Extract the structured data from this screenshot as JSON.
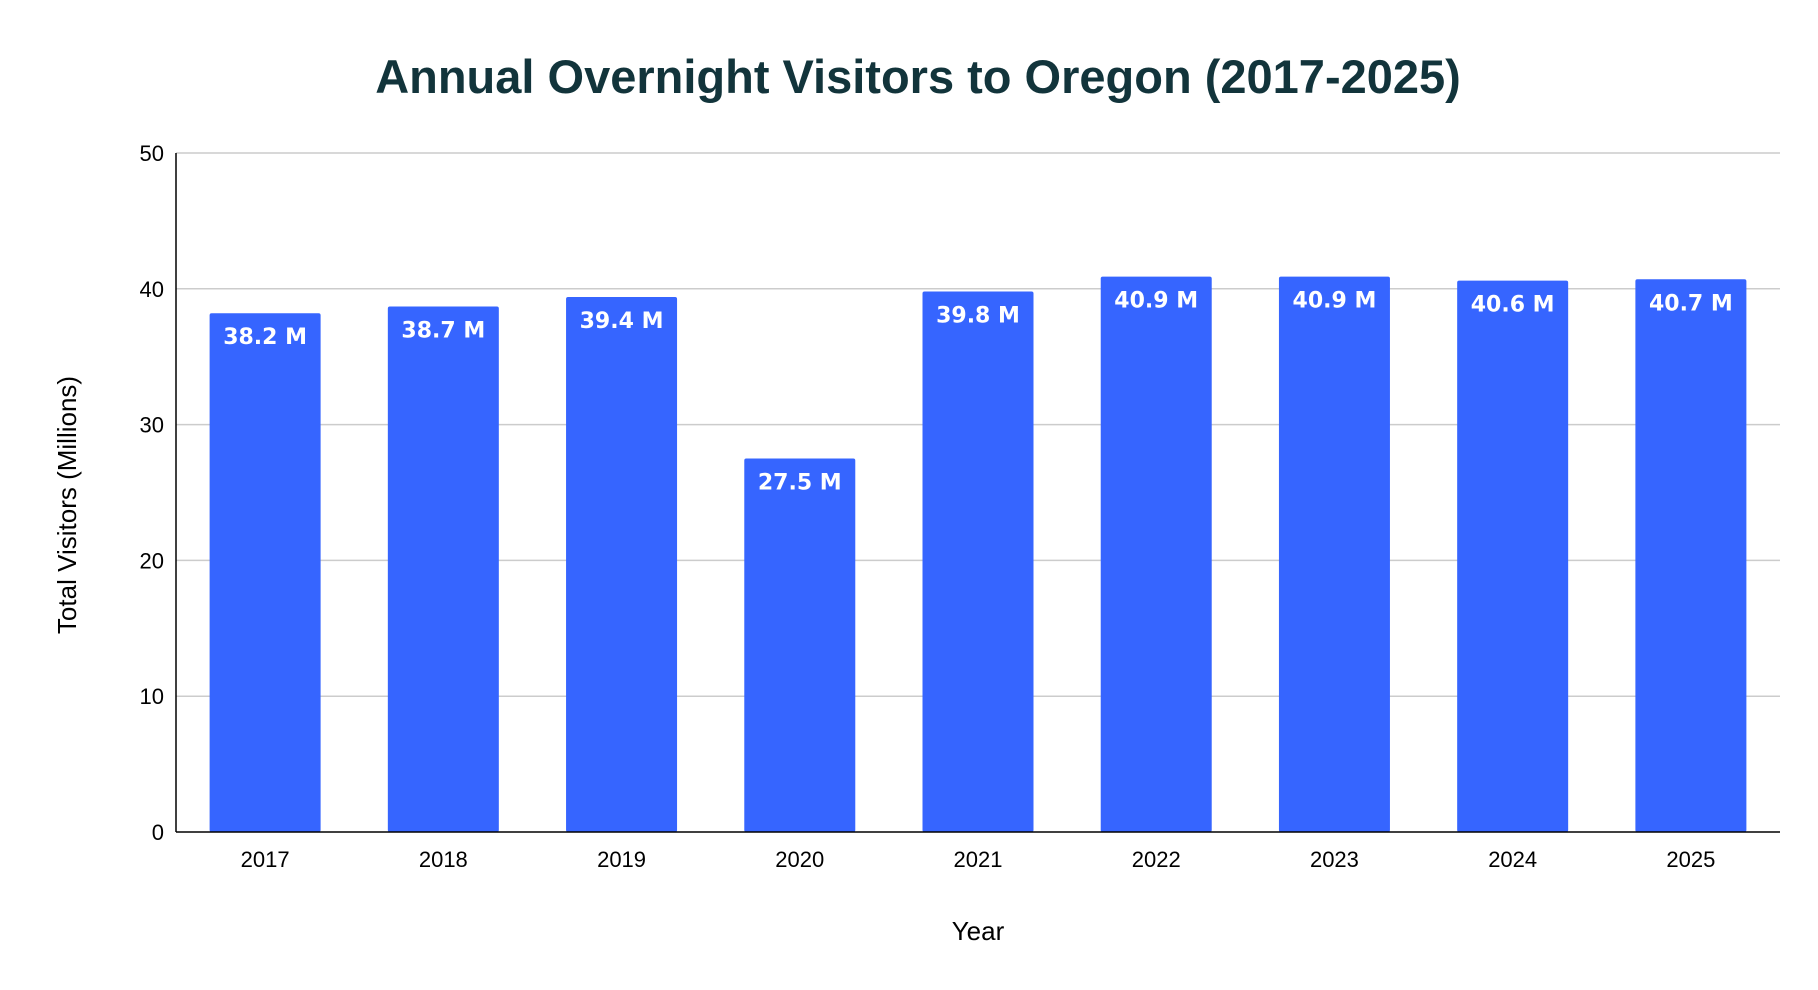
{
  "colors": {
    "bar": "#3665FF",
    "title": "#12343B",
    "grid": "#CCCCCC",
    "axis": "#000000",
    "data_label": "#FFFFFF"
  },
  "chart_data": {
    "type": "bar",
    "title": "Annual Overnight Visitors to Oregon (2017-2025)",
    "xlabel": "Year",
    "ylabel": "Total Visitors (Millions)",
    "categories": [
      "2017",
      "2018",
      "2019",
      "2020",
      "2021",
      "2022",
      "2023",
      "2024",
      "2025"
    ],
    "values": [
      38.2,
      38.7,
      39.4,
      27.5,
      39.8,
      40.9,
      40.9,
      40.6,
      40.7
    ],
    "data_labels": [
      "38.2 M",
      "38.7 M",
      "39.4 M",
      "27.5 M",
      "39.8 M",
      "40.9 M",
      "40.9 M",
      "40.6 M",
      "40.7 M"
    ],
    "ylim": [
      0,
      50
    ],
    "yticks": [
      0,
      10,
      20,
      30,
      40,
      50
    ],
    "grid": true,
    "legend": "none"
  }
}
